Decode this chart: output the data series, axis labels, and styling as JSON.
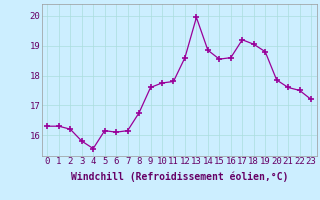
{
  "x": [
    0,
    1,
    2,
    3,
    4,
    5,
    6,
    7,
    8,
    9,
    10,
    11,
    12,
    13,
    14,
    15,
    16,
    17,
    18,
    19,
    20,
    21,
    22,
    23
  ],
  "y": [
    16.3,
    16.3,
    16.2,
    15.8,
    15.55,
    16.15,
    16.1,
    16.15,
    16.75,
    17.6,
    17.75,
    17.8,
    18.6,
    19.95,
    18.85,
    18.55,
    18.6,
    19.2,
    19.05,
    18.8,
    17.85,
    17.6,
    17.5,
    17.2
  ],
  "line_color": "#990099",
  "marker": "+",
  "background_color": "#cceeff",
  "grid_color": "#aadddd",
  "text_color": "#660066",
  "xlabel": "Windchill (Refroidissement éolien,°C)",
  "ylim": [
    15.3,
    20.4
  ],
  "xlim": [
    -0.5,
    23.5
  ],
  "yticks": [
    16,
    17,
    18,
    19,
    20
  ],
  "xticks": [
    0,
    1,
    2,
    3,
    4,
    5,
    6,
    7,
    8,
    9,
    10,
    11,
    12,
    13,
    14,
    15,
    16,
    17,
    18,
    19,
    20,
    21,
    22,
    23
  ],
  "tick_fontsize": 6.5,
  "xlabel_fontsize": 7.0
}
